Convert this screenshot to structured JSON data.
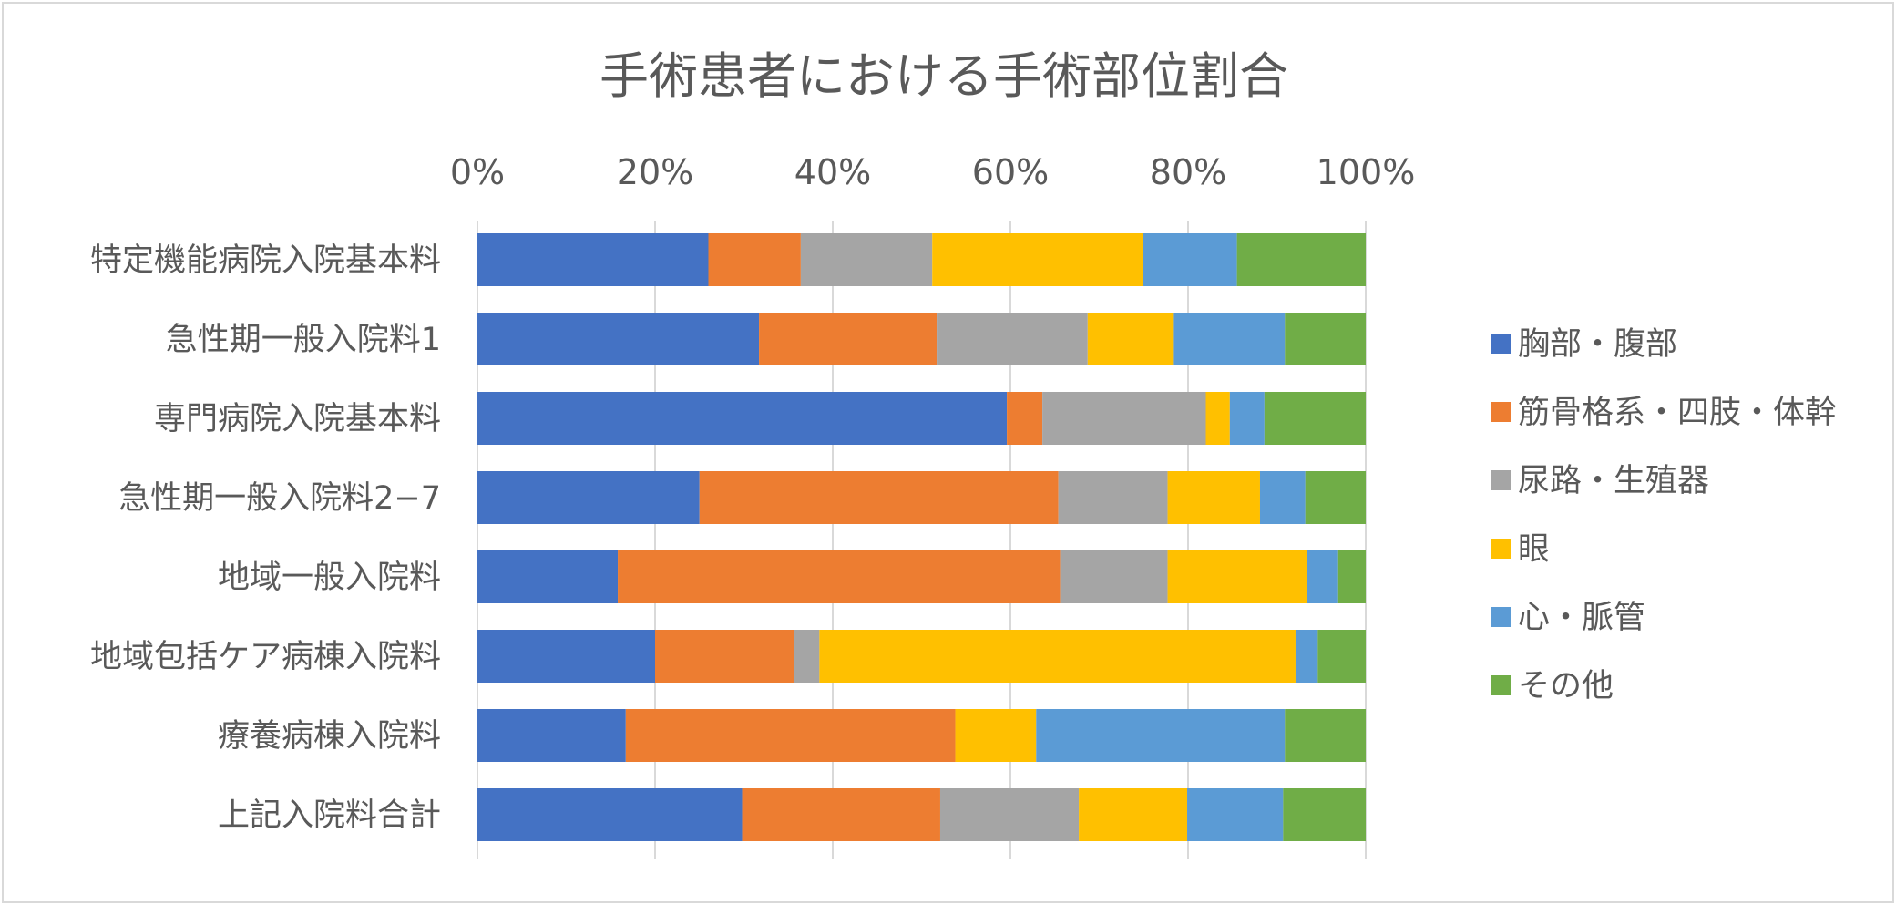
{
  "chart_data": {
    "type": "bar",
    "orientation": "horizontal",
    "stacked": "percent",
    "title": "手術患者における手術部位割合",
    "xlabel": "",
    "ylabel": "",
    "xlim": [
      0,
      100
    ],
    "x_ticks": [
      "0%",
      "20%",
      "40%",
      "60%",
      "80%",
      "100%"
    ],
    "grid": true,
    "legend_position": "right",
    "categories": [
      "特定機能病院入院基本料",
      "急性期一般入院料1",
      "専門病院入院基本料",
      "急性期一般入院料2−7",
      "地域一般入院料",
      "地域包括ケア病棟入院料",
      "療養病棟入院料",
      "上記入院料合計"
    ],
    "series": [
      {
        "name": "胸部・腹部",
        "color": "#4472c4",
        "values": [
          26,
          31.7,
          59.6,
          25,
          15.8,
          20,
          16.7,
          29.8
        ]
      },
      {
        "name": "筋骨格系・四肢・体幹",
        "color": "#ed7d31",
        "values": [
          10.4,
          20,
          4,
          40.4,
          49.8,
          15.6,
          37.1,
          22.3
        ]
      },
      {
        "name": "尿路・生殖器",
        "color": "#a5a5a5",
        "values": [
          14.8,
          17,
          18.4,
          12.3,
          12.1,
          2.9,
          0,
          15.6
        ]
      },
      {
        "name": "眼",
        "color": "#ffc000",
        "values": [
          23.7,
          9.7,
          2.7,
          10.4,
          15.7,
          53.6,
          9.1,
          12.2
        ]
      },
      {
        "name": "心・脈管",
        "color": "#5b9bd5",
        "values": [
          10.6,
          12.5,
          3.9,
          5.1,
          3.5,
          2.5,
          28,
          10.8
        ]
      },
      {
        "name": "その他",
        "color": "#70ad47",
        "values": [
          14.5,
          9.1,
          11.4,
          6.8,
          3.1,
          5.4,
          9.1,
          9.3
        ]
      }
    ]
  }
}
